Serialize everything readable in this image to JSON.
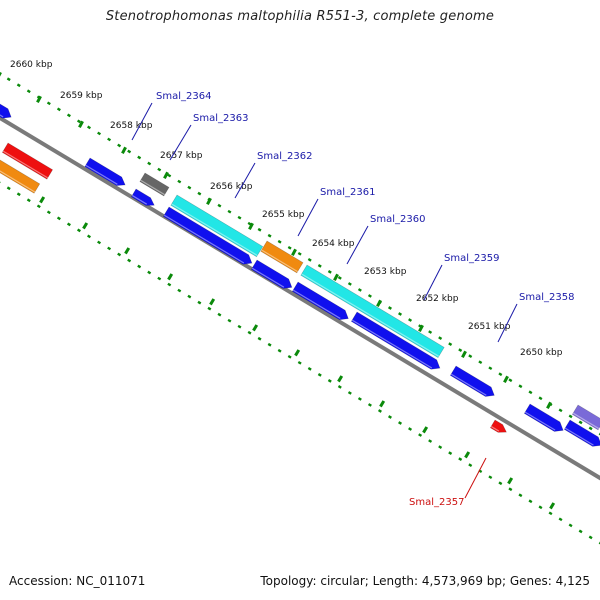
{
  "title": "Stenotrophomonas maltophilia R551-3, complete genome",
  "footer": {
    "accession": "Accession: NC_011071",
    "info": "Topology: circular; Length: 4,573,969 bp; Genes: 4,125"
  },
  "colors": {
    "backbone": "#7a7a7a",
    "tick": "#0b8a0b",
    "cds_blue": "#1010ee",
    "rna_cyan": "#22e6e6",
    "highlight_orange": "#f08a10",
    "pseudo_red": "#ee1010",
    "gray_gene": "#666666",
    "purple_gene": "#7a6ad8",
    "label_blue": "#1a1aa8",
    "label_red": "#cc1010"
  },
  "scale_labels": [
    "2660 kbp",
    "2659 kbp",
    "2658 kbp",
    "2657 kbp",
    "2656 kbp",
    "2655 kbp",
    "2654 kbp",
    "2653 kbp",
    "2652 kbp",
    "2651 kbp",
    "2650 kbp"
  ],
  "gene_labels": [
    {
      "text": "Smal_2364",
      "color": "label_blue"
    },
    {
      "text": "Smal_2363",
      "color": "label_blue"
    },
    {
      "text": "Smal_2362",
      "color": "label_blue"
    },
    {
      "text": "Smal_2361",
      "color": "label_blue"
    },
    {
      "text": "Smal_2360",
      "color": "label_blue"
    },
    {
      "text": "Smal_2359",
      "color": "label_blue"
    },
    {
      "text": "Smal_2358",
      "color": "label_blue"
    },
    {
      "text": "Smal_2357",
      "color": "label_red"
    }
  ],
  "features": [
    {
      "color": "cds_blue"
    },
    {
      "color": "pseudo_red"
    },
    {
      "color": "highlight_orange"
    },
    {
      "color": "cds_blue"
    },
    {
      "color": "gray_gene"
    },
    {
      "color": "cds_blue"
    },
    {
      "color": "rna_cyan"
    },
    {
      "color": "highlight_orange"
    },
    {
      "color": "rna_cyan"
    },
    {
      "color": "cds_blue"
    },
    {
      "color": "cds_blue"
    },
    {
      "color": "cds_blue"
    },
    {
      "color": "cds_blue"
    },
    {
      "color": "cds_blue"
    },
    {
      "color": "cds_blue"
    },
    {
      "color": "pseudo_red"
    },
    {
      "color": "cds_blue"
    },
    {
      "color": "purple_gene"
    },
    {
      "color": "cds_blue"
    }
  ]
}
